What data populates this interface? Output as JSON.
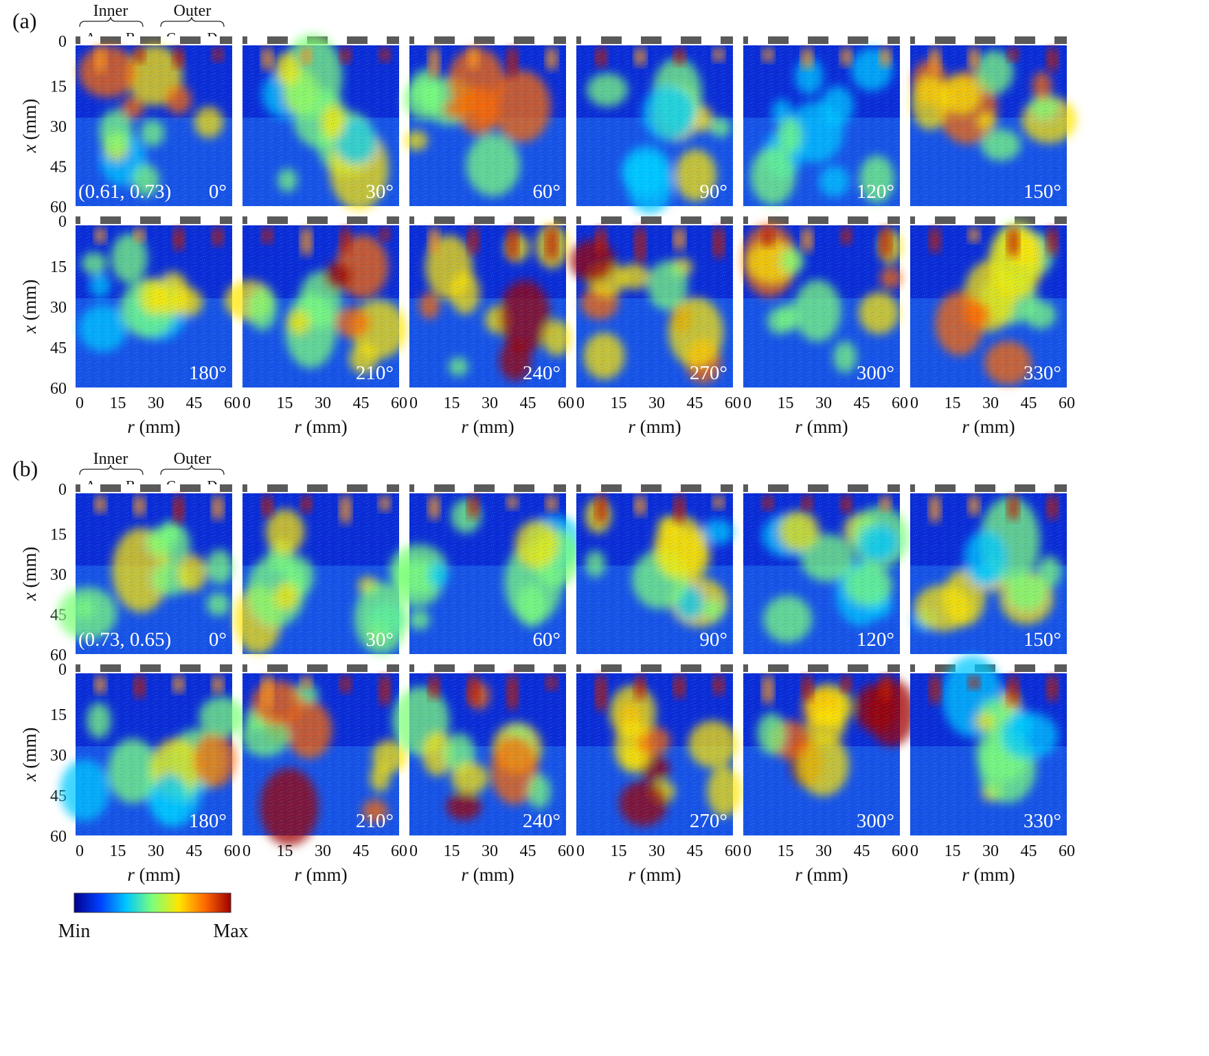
{
  "colormap": {
    "stops": [
      "#00008f",
      "#0040ff",
      "#00c8ff",
      "#7dff7a",
      "#ffe600",
      "#ff6a00",
      "#a00000"
    ],
    "min_label": "Min",
    "max_label": "Max"
  },
  "axes": {
    "x_label": "x (mm)",
    "r_label": "r (mm)",
    "r_ticks": [
      "0",
      "15",
      "30",
      "45",
      "60"
    ],
    "x_ticks": [
      "0",
      "15",
      "30",
      "45",
      "60"
    ]
  },
  "groups": [
    {
      "label": "(a)",
      "condition": "(0.61, 0.73)",
      "annular_labels": {
        "inner": "Inner",
        "outer": "Outer",
        "jets": [
          "A",
          "B",
          "C",
          "D"
        ]
      },
      "rows": [
        {
          "angles": [
            "0°",
            "30°",
            "60°",
            "90°",
            "120°",
            "150°"
          ]
        },
        {
          "angles": [
            "180°",
            "210°",
            "240°",
            "270°",
            "300°",
            "330°"
          ]
        }
      ]
    },
    {
      "label": "(b)",
      "condition": "(0.73, 0.65)",
      "annular_labels": {
        "inner": "Inner",
        "outer": "Outer",
        "jets": [
          "A",
          "B",
          "C",
          "D"
        ]
      },
      "rows": [
        {
          "angles": [
            "0°",
            "30°",
            "60°",
            "90°",
            "120°",
            "150°"
          ]
        },
        {
          "angles": [
            "180°",
            "210°",
            "240°",
            "270°",
            "300°",
            "330°"
          ]
        }
      ]
    }
  ]
}
